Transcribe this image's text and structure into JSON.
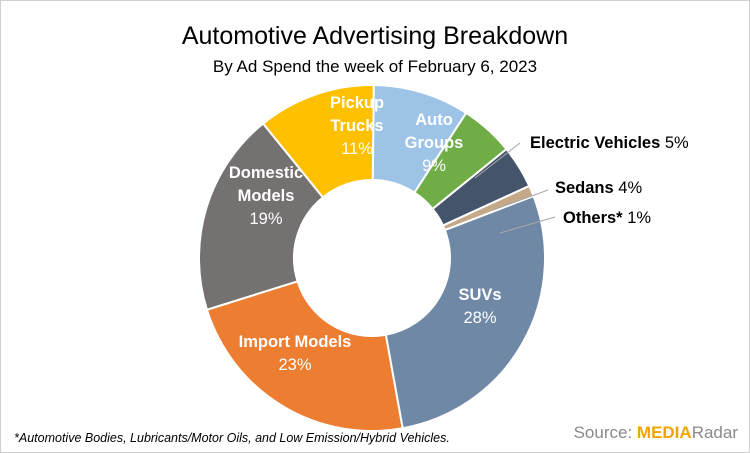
{
  "title": "Automotive Advertising Breakdown",
  "subtitle": "By Ad Spend the week of February 6, 2023",
  "footnote": "*Automotive Bodies, Lubricants/Motor Oils, and Low Emission/Hybrid Vehicles.",
  "source": {
    "label": "Source:",
    "brand_part1": "MEDIA",
    "brand_part2": "Radar"
  },
  "chart_data": {
    "type": "pie",
    "style": "donut",
    "title": "Automotive Advertising Breakdown",
    "subtitle": "By Ad Spend the week of February 6, 2023",
    "slices": [
      {
        "name": "SUVs",
        "value": 28,
        "label": "28%",
        "color": "#6f88a6"
      },
      {
        "name": "Import Models",
        "value": 23,
        "label": "23%",
        "color": "#ed7d31"
      },
      {
        "name": "Domestic Models",
        "value": 19,
        "label": "19%",
        "color": "#767171"
      },
      {
        "name": "Pickup Trucks",
        "value": 11,
        "label": "11%",
        "color": "#ffc000"
      },
      {
        "name": "Auto Groups",
        "value": 9,
        "label": "9%",
        "color": "#9dc3e6"
      },
      {
        "name": "Electric Vehicles",
        "value": 5,
        "label": "5%",
        "color": "#70ad47"
      },
      {
        "name": "Sedans",
        "value": 4,
        "label": "4%",
        "color": "#44546a"
      },
      {
        "name": "Others*",
        "value": 1,
        "label": "1%",
        "color": "#c5a887"
      }
    ],
    "legend": "none"
  }
}
